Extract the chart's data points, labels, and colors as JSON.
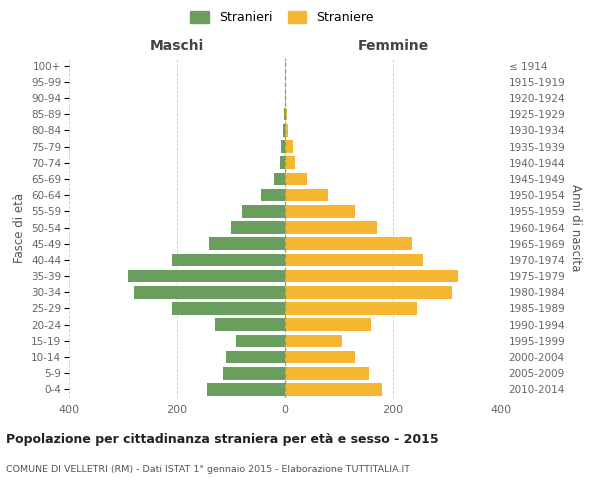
{
  "age_groups": [
    "0-4",
    "5-9",
    "10-14",
    "15-19",
    "20-24",
    "25-29",
    "30-34",
    "35-39",
    "40-44",
    "45-49",
    "50-54",
    "55-59",
    "60-64",
    "65-69",
    "70-74",
    "75-79",
    "80-84",
    "85-89",
    "90-94",
    "95-99",
    "100+"
  ],
  "birth_years": [
    "2010-2014",
    "2005-2009",
    "2000-2004",
    "1995-1999",
    "1990-1994",
    "1985-1989",
    "1980-1984",
    "1975-1979",
    "1970-1974",
    "1965-1969",
    "1960-1964",
    "1955-1959",
    "1950-1954",
    "1945-1949",
    "1940-1944",
    "1935-1939",
    "1930-1934",
    "1925-1929",
    "1920-1924",
    "1915-1919",
    "≤ 1914"
  ],
  "maschi": [
    145,
    115,
    110,
    90,
    130,
    210,
    280,
    290,
    210,
    140,
    100,
    80,
    45,
    20,
    10,
    8,
    3,
    2,
    0,
    0,
    0
  ],
  "femmine": [
    180,
    155,
    130,
    105,
    160,
    245,
    310,
    320,
    255,
    235,
    170,
    130,
    80,
    40,
    18,
    15,
    6,
    4,
    2,
    0,
    0
  ],
  "color_maschi": "#6a9e5e",
  "color_femmine": "#f5b731",
  "title": "Popolazione per cittadinanza straniera per età e sesso - 2015",
  "subtitle": "COMUNE DI VELLETRI (RM) - Dati ISTAT 1° gennaio 2015 - Elaborazione TUTTITALIA.IT",
  "ylabel_left": "Fasce di età",
  "ylabel_right": "Anni di nascita",
  "label_maschi": "Maschi",
  "label_femmine": "Femmine",
  "legend_maschi": "Stranieri",
  "legend_femmine": "Straniere",
  "xlim": 400,
  "background_color": "#ffffff",
  "grid_color": "#cccccc"
}
